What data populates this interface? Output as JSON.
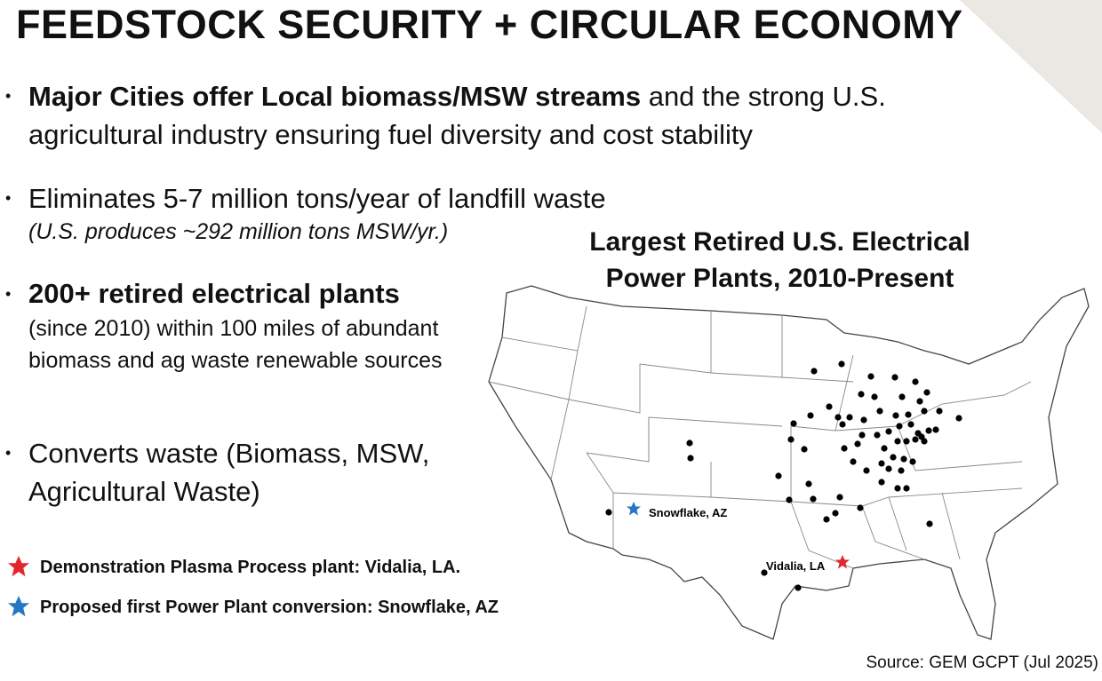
{
  "header": {
    "title": "FEEDSTOCK SECURITY + CIRCULAR ECONOMY"
  },
  "bullets": [
    {
      "lead": "Major Cities offer Local biomass/MSW streams",
      "text": "and the strong U.S. agricultural industry ensuring fuel diversity and cost stability"
    },
    {
      "text": "Eliminates 5-7 million tons/year of landfill waste",
      "note": "(U.S. produces ~292 million tons MSW/yr.)"
    },
    {
      "lead": "200+ retired electrical plants",
      "text": "(since  2010) within 100 miles of abundant biomass and ag waste renewable sources"
    },
    {
      "text": "Converts waste (Biomass, MSW, Agricultural Waste)"
    }
  ],
  "legend": [
    "Demonstration Plasma Process plant: Vidalia, LA.",
    "Proposed first Power Plant conversion: Snowflake, AZ"
  ],
  "map": {
    "title": "Largest Retired U.S. Electrical Power Plants, 2010-Present",
    "labels": [
      "Snowflake, AZ",
      "Vidalia, LA"
    ],
    "source": "Source: GEM GCPT (Jul 2025)"
  }
}
